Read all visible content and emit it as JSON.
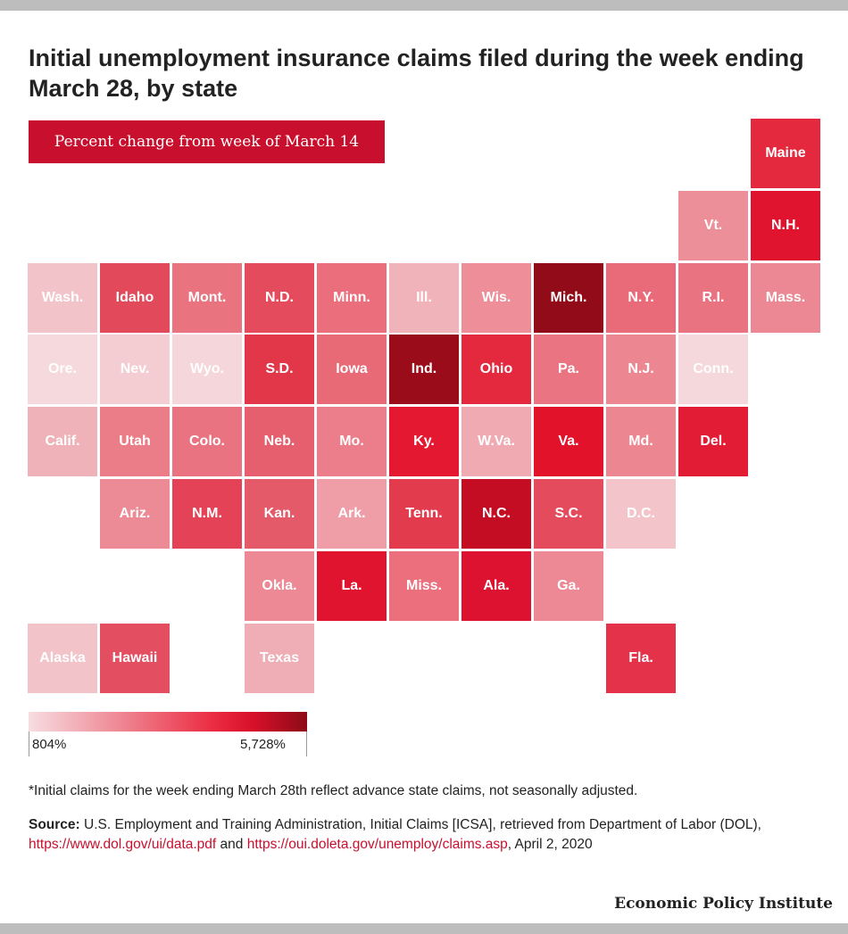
{
  "title": "Initial unemployment insurance claims filed during the week ending March 28, by state",
  "subtitle": "Percent change from week of March 14",
  "legend": {
    "min_label": "804%",
    "max_label": "5,728%",
    "min_value": 804,
    "max_value": 5728
  },
  "note": "*Initial claims for the week ending March 28th reflect advance state claims, not seasonally adjusted.",
  "source": {
    "label": "Source:",
    "text_1": " U.S. Employment and Training Administration, Initial Claims [ICSA], retrieved from Department of Labor (DOL), ",
    "link_1": "https://www.dol.gov/ui/data.pdf",
    "text_2": " and ",
    "link_2": "https://oui.doleta.gov/unemploy/claims.asp",
    "text_3": ", April 2, 2020"
  },
  "brand": "Economic Policy Institute",
  "states": [
    {
      "label": "Maine",
      "row": 0,
      "col": 10,
      "color": "#e4293f"
    },
    {
      "label": "Vt.",
      "row": 1,
      "col": 9,
      "color": "#ec8f99"
    },
    {
      "label": "N.H.",
      "row": 1,
      "col": 10,
      "color": "#e0142f"
    },
    {
      "label": "Wash.",
      "row": 2,
      "col": 0,
      "color": "#f2c3c8"
    },
    {
      "label": "Idaho",
      "row": 2,
      "col": 1,
      "color": "#e24a5c"
    },
    {
      "label": "Mont.",
      "row": 2,
      "col": 2,
      "color": "#ea7380"
    },
    {
      "label": "N.D.",
      "row": 2,
      "col": 3,
      "color": "#e44b5c"
    },
    {
      "label": "Minn.",
      "row": 2,
      "col": 4,
      "color": "#ea6e7c"
    },
    {
      "label": "Ill.",
      "row": 2,
      "col": 5,
      "color": "#f0b3ba"
    },
    {
      "label": "Wis.",
      "row": 2,
      "col": 6,
      "color": "#ed8e98"
    },
    {
      "label": "Mich.",
      "row": 2,
      "col": 7,
      "color": "#920b18"
    },
    {
      "label": "N.Y.",
      "row": 2,
      "col": 8,
      "color": "#e96b79"
    },
    {
      "label": "R.I.",
      "row": 2,
      "col": 9,
      "color": "#e97381"
    },
    {
      "label": "Mass.",
      "row": 2,
      "col": 10,
      "color": "#ec8893"
    },
    {
      "label": "Ore.",
      "row": 3,
      "col": 0,
      "color": "#f6d9dd"
    },
    {
      "label": "Nev.",
      "row": 3,
      "col": 1,
      "color": "#f4cdd2"
    },
    {
      "label": "Wyo.",
      "row": 3,
      "col": 2,
      "color": "#f5d6da"
    },
    {
      "label": "S.D.",
      "row": 3,
      "col": 3,
      "color": "#e23649"
    },
    {
      "label": "Iowa",
      "row": 3,
      "col": 4,
      "color": "#e96a77"
    },
    {
      "label": "Ind.",
      "row": 3,
      "col": 5,
      "color": "#9a0c19"
    },
    {
      "label": "Ohio",
      "row": 3,
      "col": 6,
      "color": "#e4293f"
    },
    {
      "label": "Pa.",
      "row": 3,
      "col": 7,
      "color": "#ea7482"
    },
    {
      "label": "N.J.",
      "row": 3,
      "col": 8,
      "color": "#ec8691"
    },
    {
      "label": "Conn.",
      "row": 3,
      "col": 9,
      "color": "#f5d8dc"
    },
    {
      "label": "Calif.",
      "row": 4,
      "col": 0,
      "color": "#efb2b9"
    },
    {
      "label": "Utah",
      "row": 4,
      "col": 1,
      "color": "#eb7d88"
    },
    {
      "label": "Colo.",
      "row": 4,
      "col": 2,
      "color": "#ea7381"
    },
    {
      "label": "Neb.",
      "row": 4,
      "col": 3,
      "color": "#e55f6e"
    },
    {
      "label": "Mo.",
      "row": 4,
      "col": 4,
      "color": "#eb7e8a"
    },
    {
      "label": "Ky.",
      "row": 4,
      "col": 5,
      "color": "#e41830"
    },
    {
      "label": "W.Va.",
      "row": 4,
      "col": 6,
      "color": "#f0aab2"
    },
    {
      "label": "Va.",
      "row": 4,
      "col": 7,
      "color": "#e3122b"
    },
    {
      "label": "Md.",
      "row": 4,
      "col": 8,
      "color": "#ec8792"
    },
    {
      "label": "Del.",
      "row": 4,
      "col": 9,
      "color": "#e21c34"
    },
    {
      "label": "Ariz.",
      "row": 5,
      "col": 1,
      "color": "#ec8a95"
    },
    {
      "label": "N.M.",
      "row": 5,
      "col": 2,
      "color": "#e44357"
    },
    {
      "label": "Kan.",
      "row": 5,
      "col": 3,
      "color": "#e55a69"
    },
    {
      "label": "Ark.",
      "row": 5,
      "col": 4,
      "color": "#ef9ea7"
    },
    {
      "label": "Tenn.",
      "row": 5,
      "col": 5,
      "color": "#e33b4e"
    },
    {
      "label": "N.C.",
      "row": 5,
      "col": 6,
      "color": "#c40d22"
    },
    {
      "label": "S.C.",
      "row": 5,
      "col": 7,
      "color": "#e44b5c"
    },
    {
      "label": "D.C.",
      "row": 5,
      "col": 8,
      "color": "#f3c5cb"
    },
    {
      "label": "Okla.",
      "row": 6,
      "col": 3,
      "color": "#ec8995"
    },
    {
      "label": "La.",
      "row": 6,
      "col": 4,
      "color": "#e0142f"
    },
    {
      "label": "Miss.",
      "row": 6,
      "col": 5,
      "color": "#eb6f7d"
    },
    {
      "label": "Ala.",
      "row": 6,
      "col": 6,
      "color": "#dd1230"
    },
    {
      "label": "Ga.",
      "row": 6,
      "col": 7,
      "color": "#ec8994"
    },
    {
      "label": "Alaska",
      "row": 7,
      "col": 0,
      "color": "#f2c4c9"
    },
    {
      "label": "Hawaii",
      "row": 7,
      "col": 1,
      "color": "#e34f61"
    },
    {
      "label": "Texas",
      "row": 7,
      "col": 3,
      "color": "#efadb5"
    },
    {
      "label": "Fla.",
      "row": 7,
      "col": 8,
      "color": "#e3324a"
    }
  ]
}
